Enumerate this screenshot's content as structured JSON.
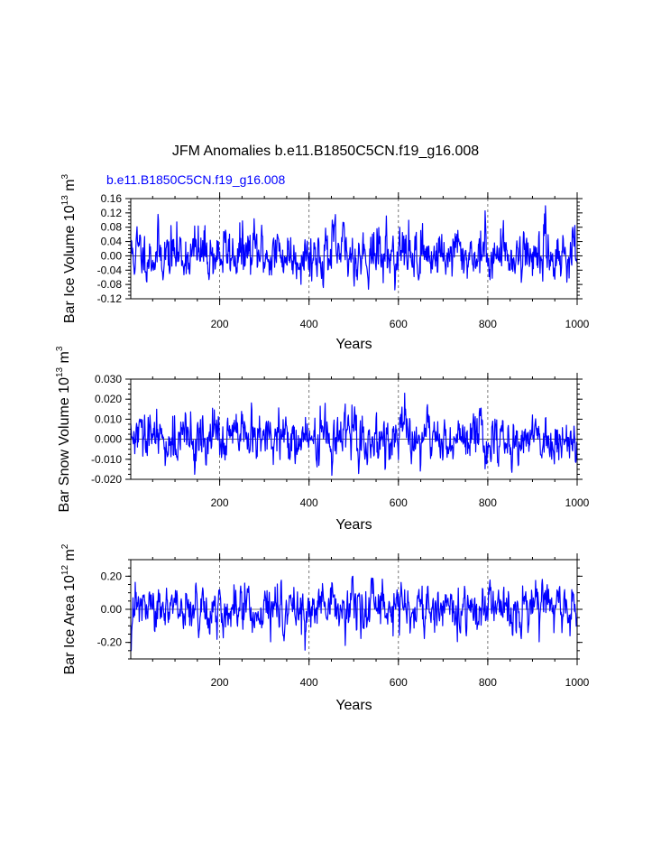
{
  "title": "JFM Anomalies b.e11.B1850C5CN.f19_g16.008",
  "subtitle": "b.e11.B1850C5CN.f19_g16.008",
  "colors": {
    "series": "#0000ff",
    "frame": "#000000",
    "grid": "#555555"
  },
  "chart_data": [
    {
      "type": "line",
      "title": "",
      "xlabel": "Years",
      "ylabel_main": "Bar Ice Volume 10",
      "ylabel_exp": "13",
      "ylabel_unit": "m",
      "ylabel_unit_exp": "3",
      "xlim": [
        1,
        1000
      ],
      "ylim": [
        -0.12,
        0.16
      ],
      "xticks": [
        200,
        400,
        600,
        800,
        1000
      ],
      "xtick_labels": [
        "200",
        "400",
        "600",
        "800",
        "1000"
      ],
      "yticks": [
        -0.12,
        -0.08,
        -0.04,
        0.0,
        0.04,
        0.08,
        0.12,
        0.16
      ],
      "ytick_labels": [
        "-0.12",
        "-0.08",
        "-0.04",
        "0.00",
        "0.04",
        "0.08",
        "0.12",
        "0.16"
      ],
      "grid_x": [
        200,
        400,
        600,
        800
      ],
      "series_params": {
        "n": 1000,
        "amplitude": 0.03,
        "peak_max": 0.14,
        "peak_min": -0.095,
        "seed": 11
      }
    },
    {
      "type": "line",
      "title": "",
      "xlabel": "Years",
      "ylabel_main": "Bar Snow Volume 10",
      "ylabel_exp": "13",
      "ylabel_unit": "m",
      "ylabel_unit_exp": "3",
      "xlim": [
        1,
        1000
      ],
      "ylim": [
        -0.02,
        0.03
      ],
      "xticks": [
        200,
        400,
        600,
        800,
        1000
      ],
      "xtick_labels": [
        "200",
        "400",
        "600",
        "800",
        "1000"
      ],
      "yticks": [
        -0.02,
        -0.01,
        0.0,
        0.01,
        0.02,
        0.03
      ],
      "ytick_labels": [
        "-0.020",
        "-0.010",
        "0.000",
        "0.010",
        "0.020",
        "0.030"
      ],
      "grid_x": [
        200,
        400,
        600,
        800
      ],
      "series_params": {
        "n": 1000,
        "amplitude": 0.0065,
        "peak_max": 0.023,
        "peak_min": -0.018,
        "seed": 29
      }
    },
    {
      "type": "line",
      "title": "",
      "xlabel": "Years",
      "ylabel_main": "Bar Ice Area 10",
      "ylabel_exp": "12",
      "ylabel_unit": "m",
      "ylabel_unit_exp": "2",
      "xlim": [
        1,
        1000
      ],
      "ylim": [
        -0.3,
        0.3
      ],
      "xticks": [
        200,
        400,
        600,
        800,
        1000
      ],
      "xtick_labels": [
        "200",
        "400",
        "600",
        "800",
        "1000"
      ],
      "yticks": [
        -0.2,
        0.0,
        0.2
      ],
      "ytick_labels": [
        "-0.20",
        "0.00",
        "0.20"
      ],
      "grid_x": [
        200,
        400,
        600,
        800
      ],
      "series_params": {
        "n": 1000,
        "amplitude": 0.07,
        "peak_max": 0.2,
        "peak_min": -0.25,
        "seed": 47
      }
    }
  ]
}
